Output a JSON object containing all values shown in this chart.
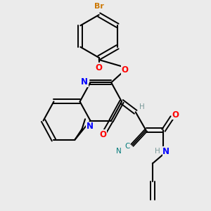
{
  "background_color": "#ebebeb",
  "atom_colors": {
    "C": "#000000",
    "N": "#0000ff",
    "O": "#ff0000",
    "Br": "#cc7700",
    "H": "#7a9a9a",
    "CN_label": "#007a7a"
  }
}
